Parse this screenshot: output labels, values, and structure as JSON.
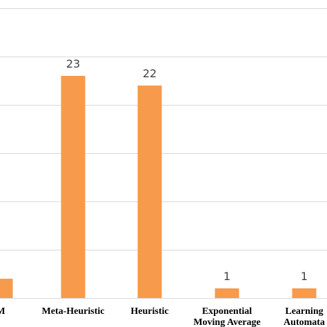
{
  "colors": {
    "bar": "#f79a4b",
    "grid": "#d9d9d9",
    "data_label": "#404040",
    "category_label": "#000000"
  },
  "chart_data": {
    "type": "bar",
    "categories": [
      "M",
      "Meta-Heuristic",
      "Heuristic",
      "Exponential Moving Average",
      "Learning Automata"
    ],
    "category_lines": [
      [
        "M"
      ],
      [
        "Meta-Heuristic"
      ],
      [
        "Heuristic"
      ],
      [
        "Exponential",
        "Moving Average"
      ],
      [
        "Learning",
        "Automata"
      ]
    ],
    "values": [
      2,
      23,
      22,
      1,
      1
    ],
    "data_labels": [
      "",
      "23",
      "22",
      "1",
      "1"
    ],
    "title": "",
    "xlabel": "",
    "ylabel": "",
    "ylim": [
      0,
      30
    ],
    "grid": true,
    "gridline_step": 5,
    "legend": "none"
  }
}
